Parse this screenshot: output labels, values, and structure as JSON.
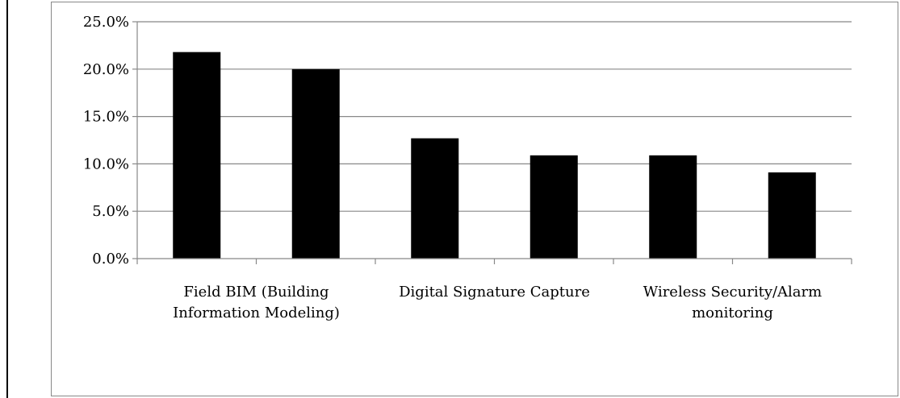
{
  "chart_data": {
    "type": "bar",
    "categories": [
      "Field BIM (Building Information Modeling)",
      "",
      "Digital Signature Capture",
      "",
      "Wireless Security/Alarm monitoring",
      ""
    ],
    "category_label_lines": [
      [
        "Field BIM (Building",
        "Information Modeling)"
      ],
      [],
      [
        "Digital Signature Capture"
      ],
      [],
      [
        "Wireless Security/Alarm",
        "monitoring"
      ],
      []
    ],
    "values": [
      21.8,
      20.0,
      12.7,
      10.9,
      10.9,
      9.1
    ],
    "y_ticks": [
      "0.0%",
      "5.0%",
      "10.0%",
      "15.0%",
      "20.0%",
      "25.0%"
    ],
    "ylim": [
      0,
      25
    ],
    "y_step": 5,
    "grid": true,
    "bar_color": "#000000",
    "grid_color": "#888888",
    "title": "",
    "xlabel": "",
    "ylabel": ""
  }
}
